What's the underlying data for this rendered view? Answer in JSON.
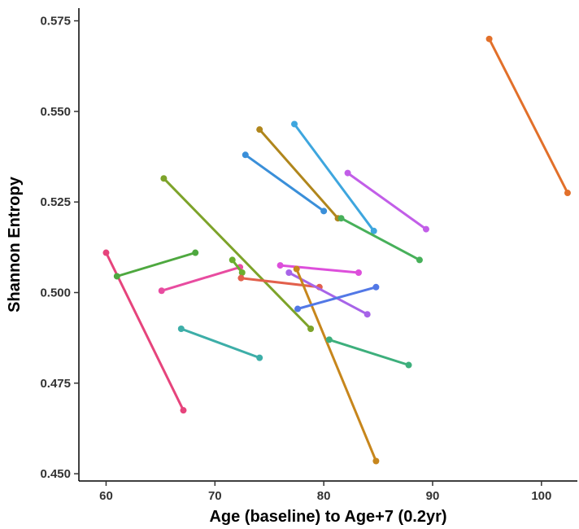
{
  "chart_data": {
    "type": "line",
    "xlabel": "Age (baseline) to Age+7 (0.2yr)",
    "ylabel": "Shannon Entropy",
    "xlim": [
      57.5,
      103.3
    ],
    "ylim": [
      0.448,
      0.5785
    ],
    "xticks": [
      60,
      70,
      80,
      90,
      100
    ],
    "yticks": [
      0.45,
      0.475,
      0.5,
      0.525,
      0.55,
      0.575
    ],
    "ytick_labels": [
      "0.450",
      "0.475",
      "0.500",
      "0.525",
      "0.550",
      "0.575"
    ],
    "grid": false,
    "legend": false,
    "series": [
      {
        "color": "#E6447C",
        "x": [
          60.0,
          67.1
        ],
        "y": [
          0.511,
          0.4675
        ]
      },
      {
        "color": "#4EA83F",
        "x": [
          61.0,
          68.2
        ],
        "y": [
          0.5045,
          0.511
        ]
      },
      {
        "color": "#E84CA0",
        "x": [
          65.1,
          72.3
        ],
        "y": [
          0.5005,
          0.507
        ]
      },
      {
        "color": "#7DA32A",
        "x": [
          65.3,
          78.8
        ],
        "y": [
          0.5315,
          0.49
        ]
      },
      {
        "color": "#3DAEA8",
        "x": [
          66.9,
          74.1
        ],
        "y": [
          0.49,
          0.482
        ]
      },
      {
        "color": "#6AAE2E",
        "x": [
          71.6,
          72.5
        ],
        "y": [
          0.509,
          0.5055
        ]
      },
      {
        "color": "#E2604C",
        "x": [
          72.4,
          79.6
        ],
        "y": [
          0.504,
          0.5015
        ]
      },
      {
        "color": "#3A8FD9",
        "x": [
          72.8,
          80.0
        ],
        "y": [
          0.538,
          0.5225
        ]
      },
      {
        "color": "#B0861C",
        "x": [
          74.1,
          81.3
        ],
        "y": [
          0.545,
          0.5205
        ]
      },
      {
        "color": "#DD4FDB",
        "x": [
          76.0,
          83.2
        ],
        "y": [
          0.5075,
          0.5055
        ]
      },
      {
        "color": "#A764E8",
        "x": [
          76.8,
          84.0
        ],
        "y": [
          0.5055,
          0.494
        ]
      },
      {
        "color": "#3EA6DE",
        "x": [
          77.3,
          84.6
        ],
        "y": [
          0.5465,
          0.517
        ]
      },
      {
        "color": "#C7861C",
        "x": [
          77.5,
          84.8
        ],
        "y": [
          0.5065,
          0.4535
        ]
      },
      {
        "color": "#5278E6",
        "x": [
          77.6,
          84.8
        ],
        "y": [
          0.4955,
          0.5015
        ]
      },
      {
        "color": "#3DAF7C",
        "x": [
          80.5,
          87.8
        ],
        "y": [
          0.487,
          0.48
        ]
      },
      {
        "color": "#47B05A",
        "x": [
          81.6,
          88.8
        ],
        "y": [
          0.5205,
          0.509
        ]
      },
      {
        "color": "#C25EE8",
        "x": [
          82.2,
          89.4
        ],
        "y": [
          0.533,
          0.5175
        ]
      },
      {
        "color": "#E2702A",
        "x": [
          95.2,
          102.4
        ],
        "y": [
          0.57,
          0.5275
        ]
      }
    ]
  }
}
